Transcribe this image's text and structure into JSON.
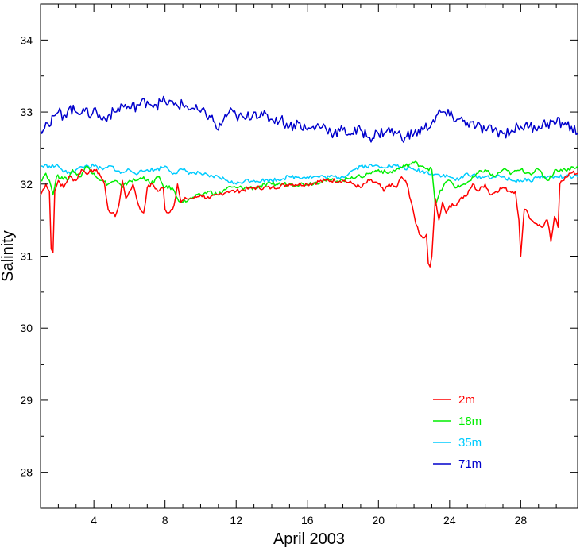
{
  "chart_data": {
    "type": "line",
    "title": "",
    "xlabel": "April 2003",
    "ylabel": "Salinity",
    "xlim": [
      1,
      31.2
    ],
    "ylim": [
      27.5,
      34.5
    ],
    "x_ticks": [
      4,
      8,
      12,
      16,
      20,
      24,
      28
    ],
    "y_ticks": [
      28,
      29,
      30,
      31,
      32,
      33,
      34
    ],
    "grid": false,
    "legend_position": "bottom-right",
    "series": [
      {
        "name": "2m",
        "color": "#ff0000",
        "points": [
          [
            1.0,
            31.85
          ],
          [
            1.3,
            32.0
          ],
          [
            1.5,
            31.9
          ],
          [
            1.6,
            31.1
          ],
          [
            1.7,
            31.05
          ],
          [
            1.8,
            31.9
          ],
          [
            2.0,
            32.05
          ],
          [
            2.3,
            31.95
          ],
          [
            2.6,
            32.1
          ],
          [
            3.0,
            32.05
          ],
          [
            3.3,
            32.2
          ],
          [
            3.7,
            32.15
          ],
          [
            4.0,
            32.2
          ],
          [
            4.3,
            32.15
          ],
          [
            4.6,
            32.0
          ],
          [
            4.8,
            31.65
          ],
          [
            5.0,
            31.6
          ],
          [
            5.2,
            31.55
          ],
          [
            5.4,
            31.7
          ],
          [
            5.6,
            32.05
          ],
          [
            5.8,
            31.8
          ],
          [
            6.0,
            31.9
          ],
          [
            6.2,
            32.0
          ],
          [
            6.4,
            31.8
          ],
          [
            6.6,
            31.65
          ],
          [
            6.8,
            31.6
          ],
          [
            7.0,
            31.95
          ],
          [
            7.3,
            32.0
          ],
          [
            7.6,
            31.9
          ],
          [
            7.9,
            31.95
          ],
          [
            8.0,
            31.65
          ],
          [
            8.2,
            31.6
          ],
          [
            8.5,
            31.7
          ],
          [
            8.7,
            32.0
          ],
          [
            8.9,
            31.75
          ],
          [
            9.2,
            31.8
          ],
          [
            9.6,
            31.8
          ],
          [
            10.0,
            31.85
          ],
          [
            10.5,
            31.8
          ],
          [
            11.0,
            31.85
          ],
          [
            11.5,
            31.9
          ],
          [
            12.0,
            31.9
          ],
          [
            13.0,
            31.95
          ],
          [
            14.0,
            31.95
          ],
          [
            15.0,
            32.0
          ],
          [
            16.0,
            32.0
          ],
          [
            17.0,
            32.05
          ],
          [
            18.0,
            32.05
          ],
          [
            18.6,
            32.0
          ],
          [
            19.0,
            31.95
          ],
          [
            19.5,
            32.05
          ],
          [
            20.0,
            32.0
          ],
          [
            20.3,
            31.9
          ],
          [
            20.6,
            32.0
          ],
          [
            21.0,
            31.95
          ],
          [
            21.3,
            32.1
          ],
          [
            21.6,
            32.0
          ],
          [
            21.9,
            31.7
          ],
          [
            22.1,
            31.45
          ],
          [
            22.3,
            31.3
          ],
          [
            22.5,
            31.25
          ],
          [
            22.7,
            31.3
          ],
          [
            22.8,
            30.9
          ],
          [
            22.9,
            30.85
          ],
          [
            23.0,
            31.0
          ],
          [
            23.2,
            31.8
          ],
          [
            23.4,
            31.5
          ],
          [
            23.6,
            31.75
          ],
          [
            23.8,
            31.6
          ],
          [
            24.0,
            31.7
          ],
          [
            24.3,
            31.7
          ],
          [
            24.6,
            31.8
          ],
          [
            25.0,
            31.85
          ],
          [
            25.3,
            32.0
          ],
          [
            25.6,
            31.9
          ],
          [
            26.0,
            32.0
          ],
          [
            26.3,
            31.85
          ],
          [
            26.6,
            31.9
          ],
          [
            27.0,
            31.95
          ],
          [
            27.4,
            31.9
          ],
          [
            27.7,
            31.9
          ],
          [
            27.9,
            31.5
          ],
          [
            28.0,
            31.0
          ],
          [
            28.2,
            31.65
          ],
          [
            28.4,
            31.6
          ],
          [
            28.6,
            31.5
          ],
          [
            28.9,
            31.45
          ],
          [
            29.2,
            31.4
          ],
          [
            29.5,
            31.5
          ],
          [
            29.7,
            31.2
          ],
          [
            29.9,
            31.55
          ],
          [
            30.1,
            31.4
          ],
          [
            30.2,
            32.0
          ],
          [
            30.5,
            32.1
          ],
          [
            30.8,
            32.15
          ],
          [
            31.2,
            32.15
          ]
        ]
      },
      {
        "name": "18m",
        "color": "#00ee00",
        "points": [
          [
            1.0,
            32.05
          ],
          [
            1.3,
            32.15
          ],
          [
            1.5,
            32.05
          ],
          [
            1.7,
            31.85
          ],
          [
            1.9,
            32.1
          ],
          [
            2.2,
            32.1
          ],
          [
            2.5,
            32.05
          ],
          [
            2.8,
            32.2
          ],
          [
            3.2,
            32.1
          ],
          [
            3.6,
            32.25
          ],
          [
            4.0,
            32.15
          ],
          [
            4.4,
            32.05
          ],
          [
            4.8,
            32.0
          ],
          [
            5.2,
            32.05
          ],
          [
            5.6,
            31.95
          ],
          [
            6.0,
            32.05
          ],
          [
            6.4,
            32.05
          ],
          [
            6.8,
            32.1
          ],
          [
            7.2,
            32.0
          ],
          [
            7.6,
            32.1
          ],
          [
            8.0,
            31.95
          ],
          [
            8.4,
            31.95
          ],
          [
            8.7,
            31.8
          ],
          [
            9.0,
            31.75
          ],
          [
            9.5,
            31.8
          ],
          [
            10.0,
            31.85
          ],
          [
            10.5,
            31.9
          ],
          [
            11.0,
            31.85
          ],
          [
            11.5,
            31.95
          ],
          [
            12.0,
            31.95
          ],
          [
            13.0,
            31.95
          ],
          [
            14.0,
            32.0
          ],
          [
            15.0,
            32.0
          ],
          [
            16.0,
            32.0
          ],
          [
            17.0,
            32.05
          ],
          [
            18.0,
            32.05
          ],
          [
            18.5,
            32.1
          ],
          [
            19.0,
            32.1
          ],
          [
            19.5,
            32.15
          ],
          [
            20.0,
            32.2
          ],
          [
            20.5,
            32.15
          ],
          [
            21.0,
            32.2
          ],
          [
            21.5,
            32.25
          ],
          [
            22.0,
            32.3
          ],
          [
            22.5,
            32.25
          ],
          [
            23.0,
            32.2
          ],
          [
            23.2,
            31.7
          ],
          [
            23.4,
            31.85
          ],
          [
            23.7,
            32.0
          ],
          [
            24.0,
            32.05
          ],
          [
            24.4,
            31.95
          ],
          [
            24.8,
            32.0
          ],
          [
            25.2,
            32.05
          ],
          [
            25.6,
            32.15
          ],
          [
            26.0,
            32.2
          ],
          [
            26.5,
            32.1
          ],
          [
            27.0,
            32.2
          ],
          [
            27.5,
            32.15
          ],
          [
            28.0,
            32.2
          ],
          [
            28.5,
            32.15
          ],
          [
            29.0,
            32.2
          ],
          [
            29.5,
            32.05
          ],
          [
            30.0,
            32.2
          ],
          [
            30.5,
            32.2
          ],
          [
            31.2,
            32.25
          ]
        ]
      },
      {
        "name": "35m",
        "color": "#00ccff",
        "points": [
          [
            1.0,
            32.25
          ],
          [
            1.5,
            32.25
          ],
          [
            2.0,
            32.25
          ],
          [
            2.2,
            32.2
          ],
          [
            2.5,
            32.15
          ],
          [
            3.0,
            32.2
          ],
          [
            3.5,
            32.25
          ],
          [
            4.0,
            32.25
          ],
          [
            4.5,
            32.2
          ],
          [
            5.0,
            32.25
          ],
          [
            5.5,
            32.15
          ],
          [
            6.0,
            32.2
          ],
          [
            6.5,
            32.15
          ],
          [
            7.0,
            32.2
          ],
          [
            7.5,
            32.2
          ],
          [
            8.0,
            32.25
          ],
          [
            8.5,
            32.15
          ],
          [
            9.0,
            32.2
          ],
          [
            9.5,
            32.15
          ],
          [
            10.0,
            32.15
          ],
          [
            10.5,
            32.1
          ],
          [
            11.0,
            32.1
          ],
          [
            11.5,
            32.05
          ],
          [
            12.0,
            32.0
          ],
          [
            12.5,
            32.05
          ],
          [
            13.0,
            32.05
          ],
          [
            14.0,
            32.05
          ],
          [
            15.0,
            32.1
          ],
          [
            16.0,
            32.1
          ],
          [
            17.0,
            32.1
          ],
          [
            18.0,
            32.1
          ],
          [
            18.6,
            32.2
          ],
          [
            19.0,
            32.25
          ],
          [
            20.0,
            32.25
          ],
          [
            21.0,
            32.25
          ],
          [
            22.0,
            32.2
          ],
          [
            23.0,
            32.15
          ],
          [
            24.0,
            32.1
          ],
          [
            24.5,
            32.05
          ],
          [
            25.0,
            32.15
          ],
          [
            25.5,
            32.1
          ],
          [
            26.0,
            32.1
          ],
          [
            26.5,
            32.1
          ],
          [
            27.0,
            32.1
          ],
          [
            27.5,
            32.05
          ],
          [
            28.0,
            32.05
          ],
          [
            28.5,
            32.05
          ],
          [
            29.0,
            32.1
          ],
          [
            29.5,
            32.1
          ],
          [
            30.0,
            32.1
          ],
          [
            30.5,
            32.1
          ],
          [
            31.2,
            32.1
          ]
        ]
      },
      {
        "name": "71m",
        "color": "#0000cc",
        "points": [
          [
            1.0,
            32.75
          ],
          [
            1.3,
            32.85
          ],
          [
            1.5,
            32.8
          ],
          [
            1.8,
            32.95
          ],
          [
            2.0,
            33.0
          ],
          [
            2.3,
            32.95
          ],
          [
            2.6,
            33.05
          ],
          [
            3.0,
            33.0
          ],
          [
            3.4,
            33.05
          ],
          [
            3.7,
            32.95
          ],
          [
            4.0,
            33.05
          ],
          [
            4.4,
            32.9
          ],
          [
            4.8,
            32.95
          ],
          [
            5.2,
            33.0
          ],
          [
            5.6,
            33.1
          ],
          [
            6.0,
            33.05
          ],
          [
            6.5,
            33.1
          ],
          [
            7.0,
            33.15
          ],
          [
            7.5,
            33.1
          ],
          [
            8.0,
            33.15
          ],
          [
            8.5,
            33.1
          ],
          [
            9.0,
            33.1
          ],
          [
            9.5,
            33.05
          ],
          [
            10.0,
            33.0
          ],
          [
            10.5,
            32.95
          ],
          [
            10.8,
            32.85
          ],
          [
            11.0,
            32.75
          ],
          [
            11.3,
            32.9
          ],
          [
            11.6,
            33.0
          ],
          [
            12.0,
            32.95
          ],
          [
            12.5,
            32.9
          ],
          [
            13.0,
            33.0
          ],
          [
            13.5,
            32.95
          ],
          [
            14.0,
            32.9
          ],
          [
            14.5,
            32.9
          ],
          [
            15.0,
            32.8
          ],
          [
            15.5,
            32.85
          ],
          [
            16.0,
            32.75
          ],
          [
            16.5,
            32.8
          ],
          [
            17.0,
            32.8
          ],
          [
            17.5,
            32.7
          ],
          [
            18.0,
            32.75
          ],
          [
            18.5,
            32.7
          ],
          [
            19.0,
            32.75
          ],
          [
            19.5,
            32.65
          ],
          [
            20.0,
            32.7
          ],
          [
            20.5,
            32.75
          ],
          [
            21.0,
            32.7
          ],
          [
            21.5,
            32.65
          ],
          [
            22.0,
            32.7
          ],
          [
            22.5,
            32.75
          ],
          [
            23.0,
            32.85
          ],
          [
            23.5,
            33.0
          ],
          [
            24.0,
            32.95
          ],
          [
            24.5,
            32.9
          ],
          [
            25.0,
            32.85
          ],
          [
            25.5,
            32.8
          ],
          [
            26.0,
            32.75
          ],
          [
            26.5,
            32.75
          ],
          [
            27.0,
            32.7
          ],
          [
            27.5,
            32.75
          ],
          [
            28.0,
            32.8
          ],
          [
            28.5,
            32.8
          ],
          [
            29.0,
            32.8
          ],
          [
            29.5,
            32.85
          ],
          [
            30.0,
            32.85
          ],
          [
            30.5,
            32.85
          ],
          [
            31.2,
            32.7
          ]
        ]
      }
    ]
  }
}
